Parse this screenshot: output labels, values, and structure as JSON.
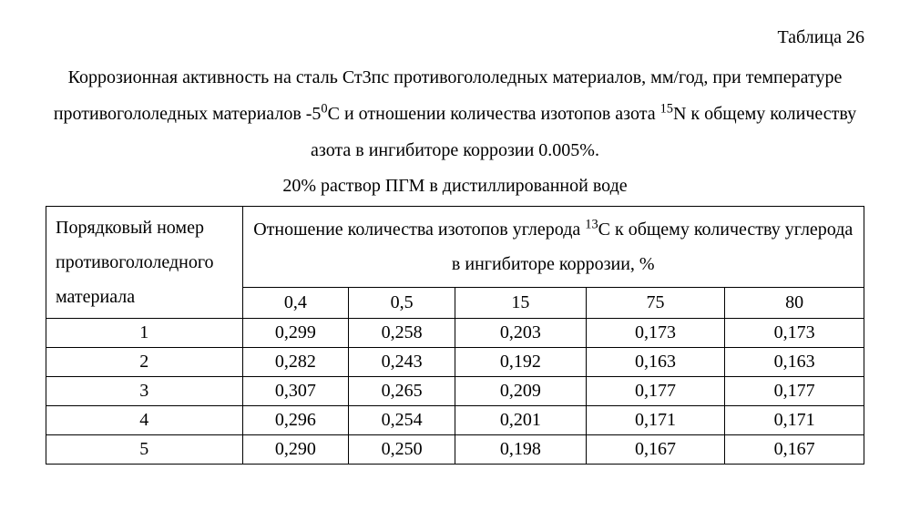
{
  "table_label": "Таблица 26",
  "caption_html": "Коррозионная активность на сталь Ст3пс противогололедных материалов, мм/год, при температуре противогололедных материалов -5<sup>0</sup>С и отношении количества изотопов азота <sup>15</sup>N  к общему количеству азота в ингибиторе коррозии 0.005%.",
  "subcaption": "20% раствор ПГМ в дистиллированной воде",
  "table": {
    "row_header_html": "Порядковый номер противогололедного материала",
    "col_span_header_html": "Отношение количества изотопов углерода <sup>13</sup>С к общему количеству углерода в ингибиторе коррозии, %",
    "columns": [
      "0,4",
      "0,5",
      "15",
      "75",
      "80"
    ],
    "rows": [
      {
        "idx": "1",
        "vals": [
          "0,299",
          "0,258",
          "0,203",
          "0,173",
          "0,173"
        ]
      },
      {
        "idx": "2",
        "vals": [
          "0,282",
          "0,243",
          "0,192",
          "0,163",
          "0,163"
        ]
      },
      {
        "idx": "3",
        "vals": [
          "0,307",
          "0,265",
          "0,209",
          "0,177",
          "0,177"
        ]
      },
      {
        "idx": "4",
        "vals": [
          "0,296",
          "0,254",
          "0,201",
          "0,171",
          "0,171"
        ]
      },
      {
        "idx": "5",
        "vals": [
          "0,290",
          "0,250",
          "0,198",
          "0,167",
          "0,167"
        ]
      }
    ],
    "col_widths_pct": [
      24,
      13,
      13,
      16,
      17,
      17
    ],
    "border_color": "#000000",
    "background_color": "#ffffff",
    "font_family": "Times New Roman",
    "font_size_pt": 15
  }
}
